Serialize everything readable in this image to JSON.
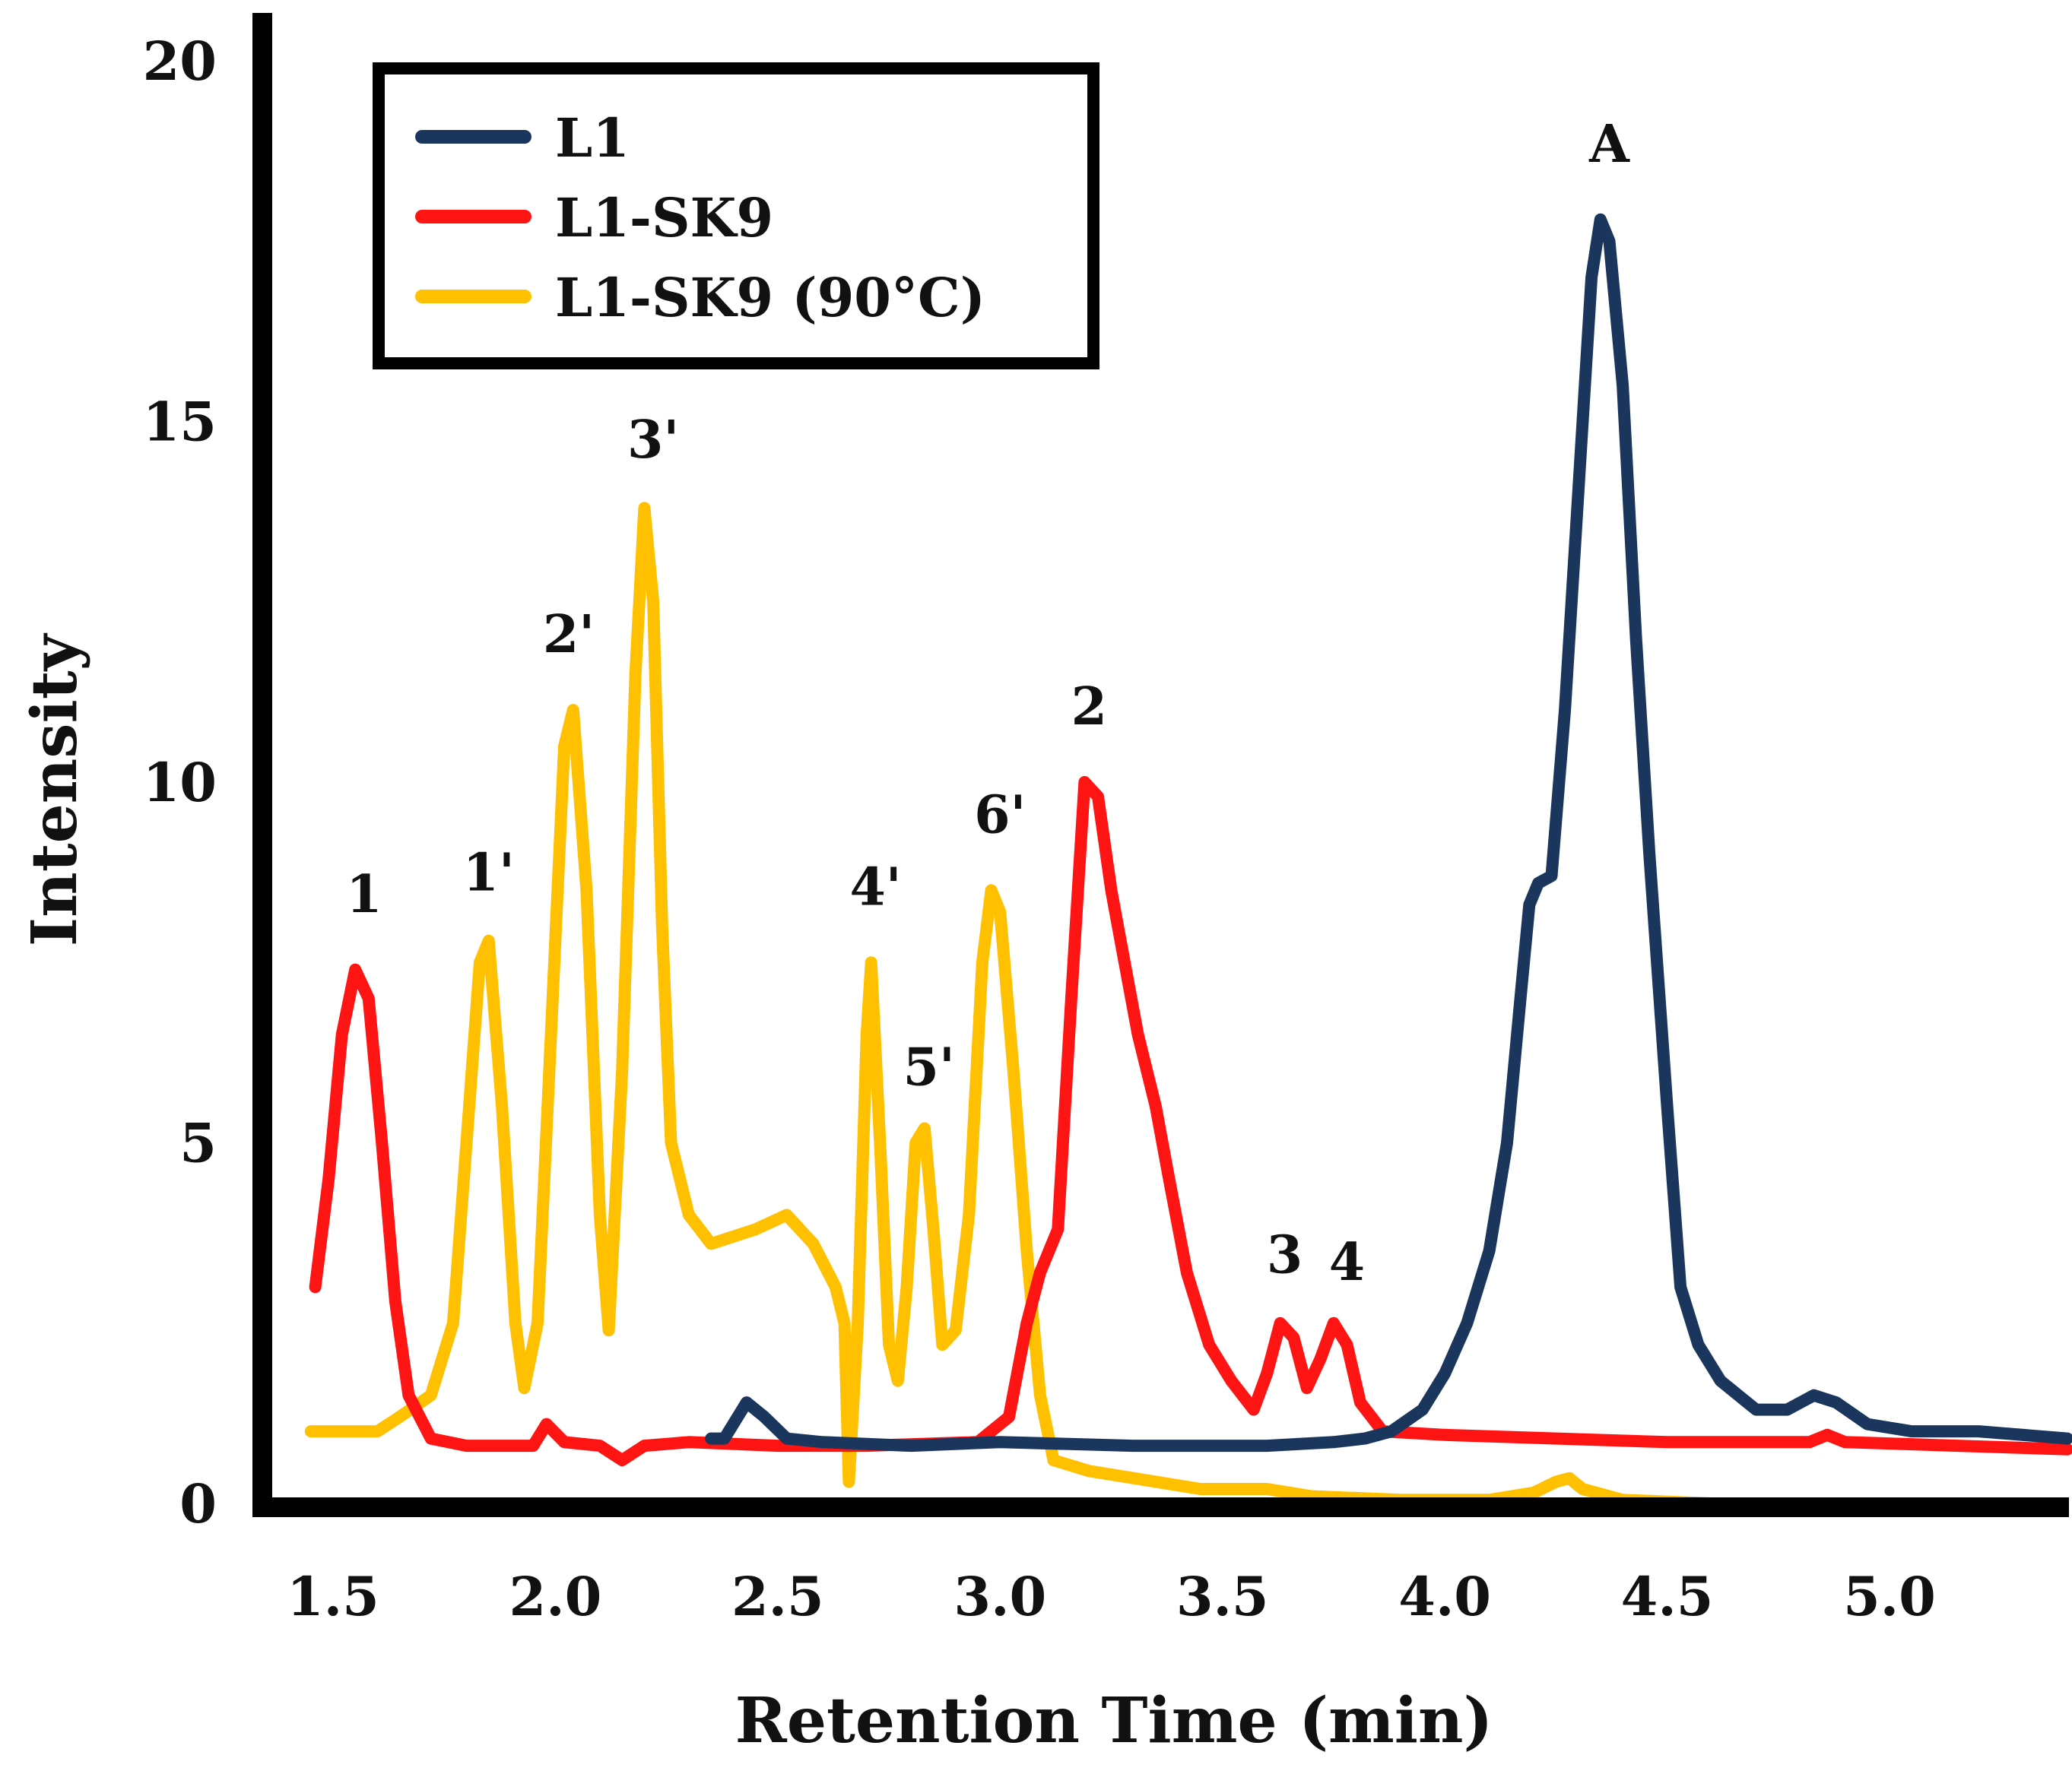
{
  "chart_data": {
    "type": "line",
    "title": "",
    "xlabel": "Retention Time (min)",
    "ylabel": "Intensity",
    "xlim": [
      1.45,
      5.4
    ],
    "ylim": [
      0,
      20
    ],
    "x_ticks": [
      "1.5",
      "2.0",
      "2.5",
      "3.0",
      "3.5",
      "4.0",
      "4.5",
      "5.0"
    ],
    "y_ticks": [
      "0",
      "5",
      "10",
      "15",
      "20"
    ],
    "grid": false,
    "legend_position": "top-left",
    "series": [
      {
        "name": "L1",
        "color": "#1b365d",
        "points": [
          [
            2.35,
            0.9
          ],
          [
            2.38,
            0.9
          ],
          [
            2.43,
            1.4
          ],
          [
            2.47,
            1.2
          ],
          [
            2.52,
            0.9
          ],
          [
            2.6,
            0.85
          ],
          [
            2.8,
            0.8
          ],
          [
            3.0,
            0.85
          ],
          [
            3.3,
            0.8
          ],
          [
            3.5,
            0.8
          ],
          [
            3.6,
            0.8
          ],
          [
            3.75,
            0.85
          ],
          [
            3.82,
            0.9
          ],
          [
            3.88,
            1.0
          ],
          [
            3.95,
            1.3
          ],
          [
            4.0,
            1.8
          ],
          [
            4.05,
            2.5
          ],
          [
            4.1,
            3.5
          ],
          [
            4.14,
            5.0
          ],
          [
            4.17,
            7.0
          ],
          [
            4.19,
            8.3
          ],
          [
            4.21,
            8.6
          ],
          [
            4.24,
            8.7
          ],
          [
            4.27,
            11.0
          ],
          [
            4.3,
            14.0
          ],
          [
            4.33,
            17.0
          ],
          [
            4.35,
            17.8
          ],
          [
            4.37,
            17.5
          ],
          [
            4.4,
            15.5
          ],
          [
            4.43,
            12.0
          ],
          [
            4.46,
            9.0
          ],
          [
            4.5,
            5.5
          ],
          [
            4.53,
            3.0
          ],
          [
            4.57,
            2.2
          ],
          [
            4.62,
            1.7
          ],
          [
            4.7,
            1.3
          ],
          [
            4.77,
            1.3
          ],
          [
            4.83,
            1.5
          ],
          [
            4.88,
            1.4
          ],
          [
            4.95,
            1.1
          ],
          [
            5.05,
            1.0
          ],
          [
            5.2,
            1.0
          ],
          [
            5.4,
            0.9
          ]
        ]
      },
      {
        "name": "L1-SK9",
        "color": "#ff1414",
        "points": [
          [
            1.46,
            3.0
          ],
          [
            1.49,
            4.5
          ],
          [
            1.52,
            6.5
          ],
          [
            1.55,
            7.4
          ],
          [
            1.58,
            7.0
          ],
          [
            1.61,
            5.0
          ],
          [
            1.64,
            2.8
          ],
          [
            1.67,
            1.5
          ],
          [
            1.72,
            0.9
          ],
          [
            1.8,
            0.8
          ],
          [
            1.95,
            0.8
          ],
          [
            1.98,
            1.1
          ],
          [
            2.02,
            0.85
          ],
          [
            2.1,
            0.8
          ],
          [
            2.15,
            0.6
          ],
          [
            2.2,
            0.8
          ],
          [
            2.3,
            0.85
          ],
          [
            2.5,
            0.8
          ],
          [
            2.7,
            0.8
          ],
          [
            2.95,
            0.85
          ],
          [
            3.02,
            1.2
          ],
          [
            3.06,
            2.5
          ],
          [
            3.09,
            3.2
          ],
          [
            3.13,
            3.8
          ],
          [
            3.16,
            7.0
          ],
          [
            3.19,
            10.0
          ],
          [
            3.22,
            9.8
          ],
          [
            3.25,
            8.5
          ],
          [
            3.28,
            7.5
          ],
          [
            3.31,
            6.5
          ],
          [
            3.35,
            5.5
          ],
          [
            3.38,
            4.5
          ],
          [
            3.42,
            3.2
          ],
          [
            3.47,
            2.2
          ],
          [
            3.52,
            1.7
          ],
          [
            3.57,
            1.3
          ],
          [
            3.6,
            1.8
          ],
          [
            3.63,
            2.5
          ],
          [
            3.66,
            2.3
          ],
          [
            3.69,
            1.6
          ],
          [
            3.72,
            2.0
          ],
          [
            3.75,
            2.5
          ],
          [
            3.78,
            2.2
          ],
          [
            3.81,
            1.4
          ],
          [
            3.86,
            1.0
          ],
          [
            4.0,
            0.95
          ],
          [
            4.5,
            0.85
          ],
          [
            4.82,
            0.85
          ],
          [
            4.86,
            0.95
          ],
          [
            4.9,
            0.85
          ],
          [
            5.4,
            0.75
          ]
        ]
      },
      {
        "name": "L1-SK9 (90°C)",
        "color": "#ffc000",
        "points": [
          [
            1.45,
            1.0
          ],
          [
            1.55,
            1.0
          ],
          [
            1.6,
            1.0
          ],
          [
            1.65,
            1.2
          ],
          [
            1.72,
            1.5
          ],
          [
            1.77,
            2.5
          ],
          [
            1.8,
            5.0
          ],
          [
            1.83,
            7.5
          ],
          [
            1.85,
            7.8
          ],
          [
            1.88,
            5.5
          ],
          [
            1.91,
            2.5
          ],
          [
            1.93,
            1.6
          ],
          [
            1.96,
            2.5
          ],
          [
            1.99,
            6.5
          ],
          [
            2.02,
            10.5
          ],
          [
            2.04,
            11.0
          ],
          [
            2.07,
            8.5
          ],
          [
            2.1,
            4.0
          ],
          [
            2.12,
            2.4
          ],
          [
            2.15,
            6.0
          ],
          [
            2.18,
            11.5
          ],
          [
            2.2,
            13.8
          ],
          [
            2.22,
            12.5
          ],
          [
            2.24,
            8.0
          ],
          [
            2.26,
            5.0
          ],
          [
            2.3,
            4.0
          ],
          [
            2.35,
            3.6
          ],
          [
            2.45,
            3.8
          ],
          [
            2.52,
            4.0
          ],
          [
            2.58,
            3.6
          ],
          [
            2.63,
            3.0
          ],
          [
            2.65,
            2.5
          ],
          [
            2.66,
            0.3
          ],
          [
            2.68,
            2.5
          ],
          [
            2.7,
            6.5
          ],
          [
            2.71,
            7.5
          ],
          [
            2.73,
            5.0
          ],
          [
            2.75,
            2.2
          ],
          [
            2.77,
            1.7
          ],
          [
            2.79,
            3.0
          ],
          [
            2.81,
            5.0
          ],
          [
            2.83,
            5.2
          ],
          [
            2.85,
            3.8
          ],
          [
            2.87,
            2.2
          ],
          [
            2.9,
            2.4
          ],
          [
            2.93,
            4.0
          ],
          [
            2.96,
            7.5
          ],
          [
            2.98,
            8.5
          ],
          [
            3.0,
            8.2
          ],
          [
            3.03,
            6.0
          ],
          [
            3.06,
            3.5
          ],
          [
            3.09,
            1.5
          ],
          [
            3.12,
            0.6
          ],
          [
            3.2,
            0.45
          ],
          [
            3.35,
            0.3
          ],
          [
            3.45,
            0.2
          ],
          [
            3.6,
            0.2
          ],
          [
            3.7,
            0.1
          ],
          [
            3.9,
            0.05
          ],
          [
            4.1,
            0.05
          ],
          [
            4.2,
            0.15
          ],
          [
            4.25,
            0.3
          ],
          [
            4.28,
            0.35
          ],
          [
            4.31,
            0.2
          ],
          [
            4.4,
            0.05
          ],
          [
            4.6,
            0.0
          ],
          [
            5.0,
            0.0
          ]
        ]
      }
    ],
    "annotations": [
      {
        "label": "1",
        "x": 1.57,
        "y": 8.2,
        "series": "L1-SK9"
      },
      {
        "label": "2",
        "x": 3.2,
        "y": 10.8,
        "series": "L1-SK9"
      },
      {
        "label": "3",
        "x": 3.64,
        "y": 3.2,
        "series": "L1-SK9"
      },
      {
        "label": "4",
        "x": 3.78,
        "y": 3.1,
        "series": "L1-SK9"
      },
      {
        "label": "1'",
        "x": 1.85,
        "y": 8.5,
        "series": "L1-SK9 (90°C)"
      },
      {
        "label": "2'",
        "x": 2.03,
        "y": 11.8,
        "series": "L1-SK9 (90°C)"
      },
      {
        "label": "3'",
        "x": 2.22,
        "y": 14.5,
        "series": "L1-SK9 (90°C)"
      },
      {
        "label": "4'",
        "x": 2.72,
        "y": 8.3,
        "series": "L1-SK9 (90°C)"
      },
      {
        "label": "5'",
        "x": 2.84,
        "y": 5.8,
        "series": "L1-SK9 (90°C)"
      },
      {
        "label": "6'",
        "x": 3.0,
        "y": 9.3,
        "series": "L1-SK9 (90°C)"
      },
      {
        "label": "A",
        "x": 4.37,
        "y": 18.6,
        "series": "L1"
      }
    ]
  }
}
